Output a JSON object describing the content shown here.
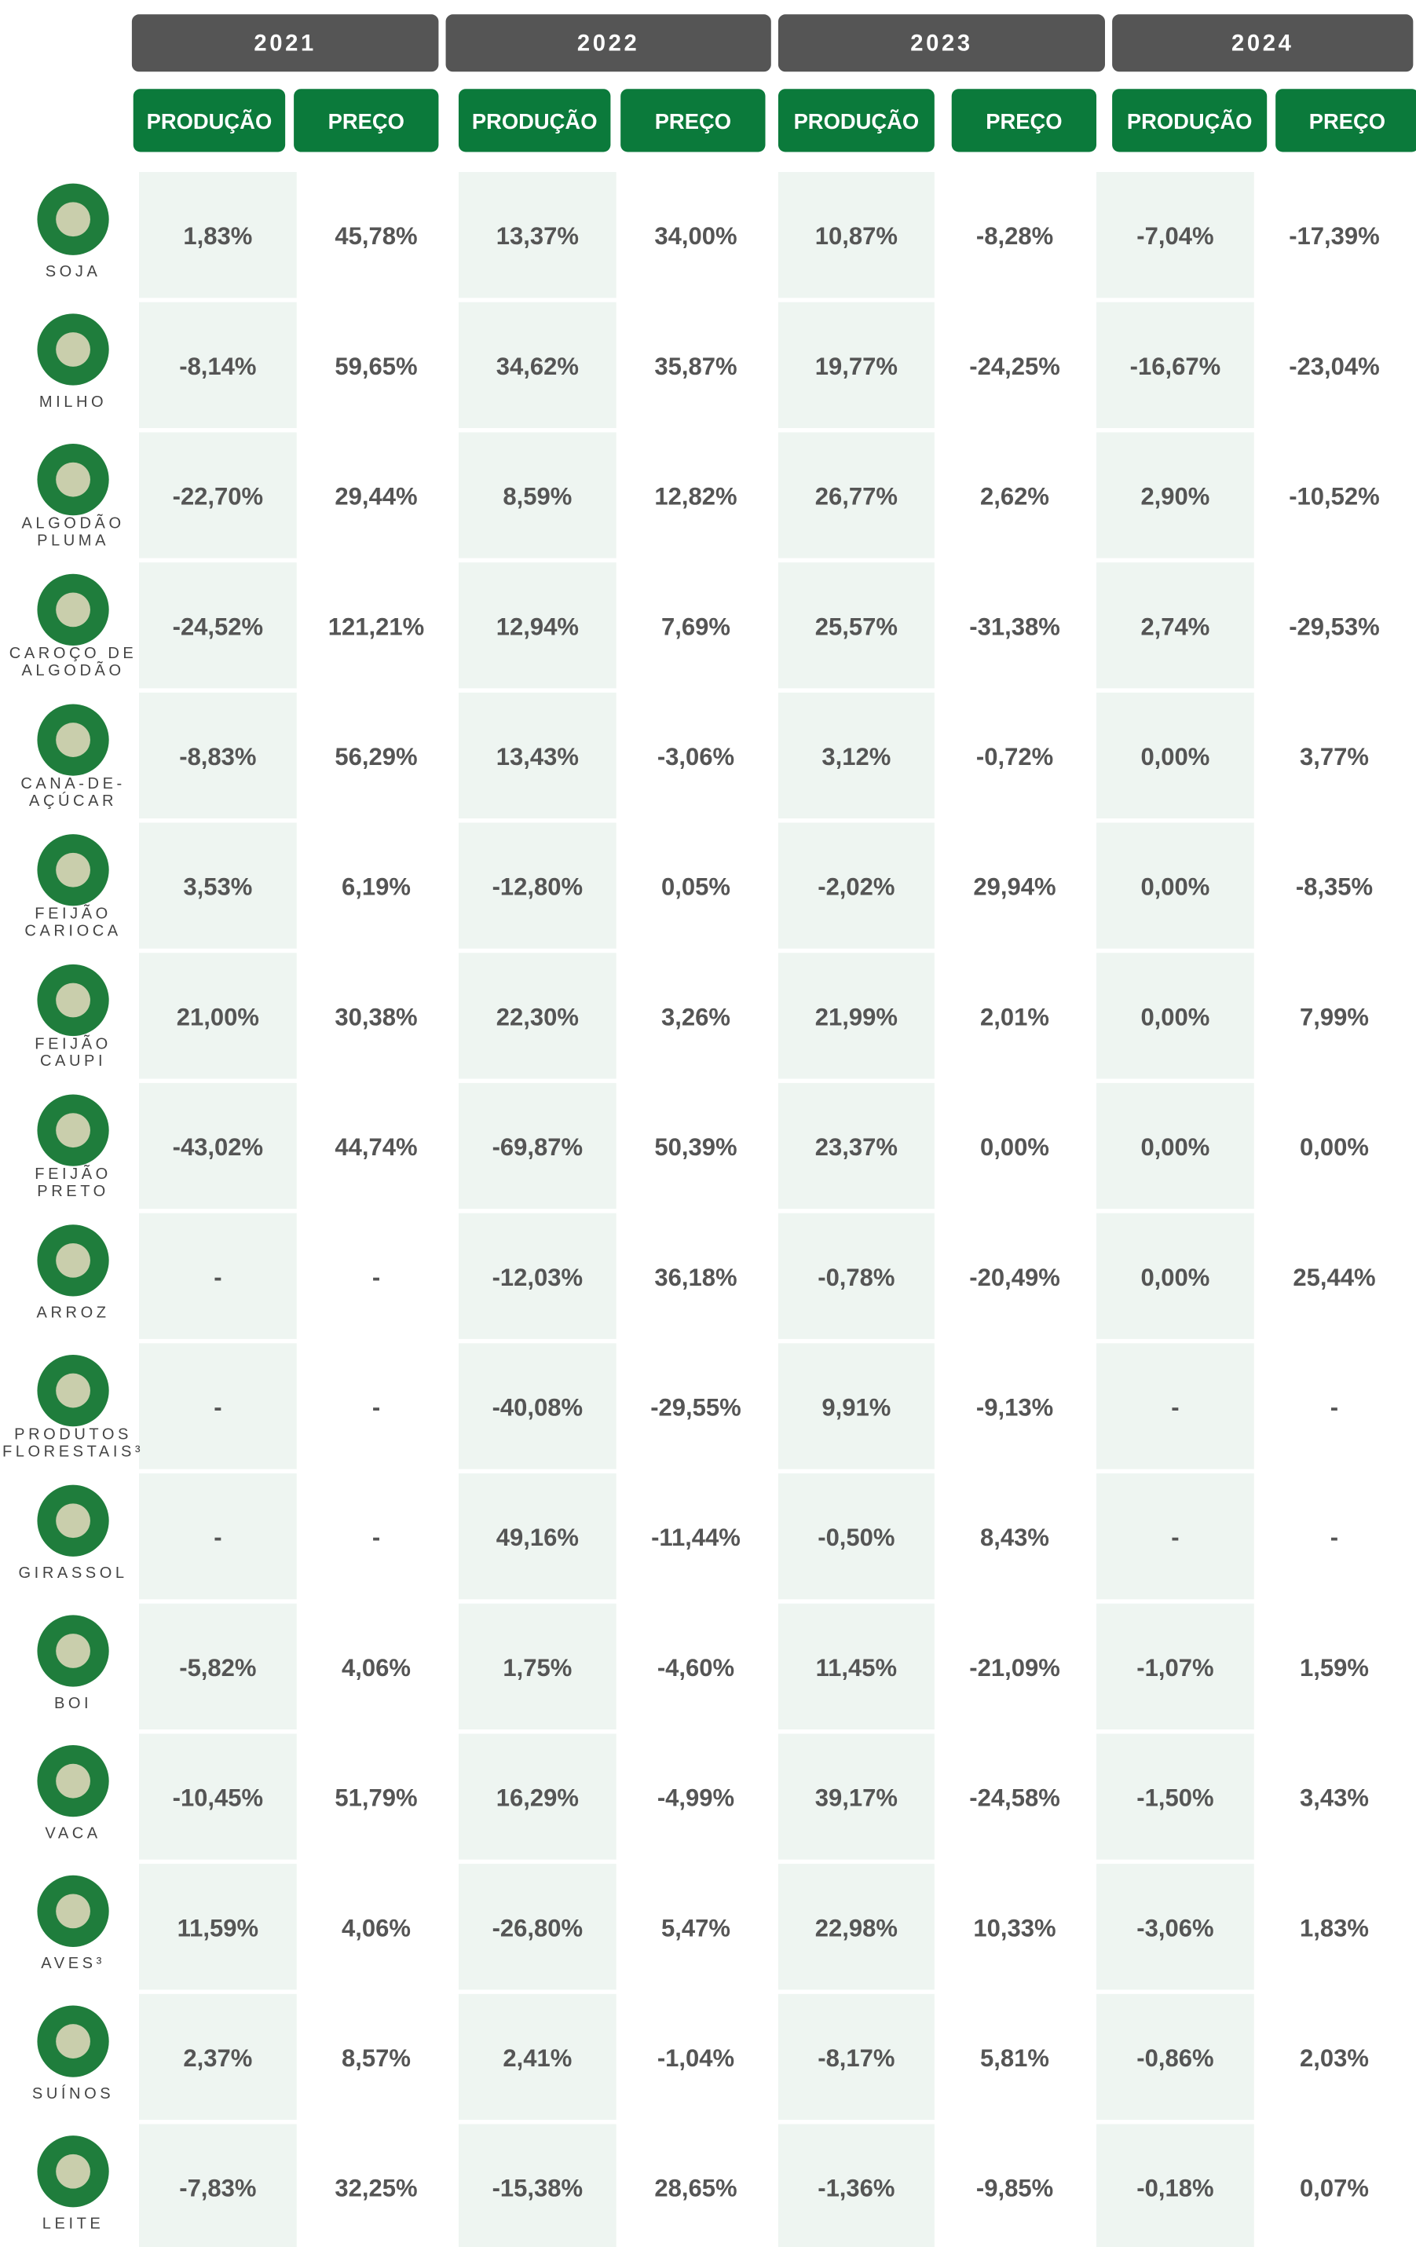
{
  "table": {
    "years": [
      "2021",
      "2022",
      "2023",
      "2024"
    ],
    "subheaders": [
      "PRODUÇÃO",
      "PREÇO",
      "PRODUÇÃO",
      "PREÇO",
      "PRODUÇÃO",
      "PREÇO",
      "PRODUÇÃO",
      "PREÇO"
    ],
    "rows": [
      {
        "label": [
          "SOJA"
        ],
        "values": [
          "1,83%",
          "45,78%",
          "13,37%",
          "34,00%",
          "10,87%",
          "-8,28%",
          "-7,04%",
          "-17,39%"
        ]
      },
      {
        "label": [
          "MILHO"
        ],
        "values": [
          "-8,14%",
          "59,65%",
          "34,62%",
          "35,87%",
          "19,77%",
          "-24,25%",
          "-16,67%",
          "-23,04%"
        ]
      },
      {
        "label": [
          "ALGODÃO",
          "PLUMA"
        ],
        "values": [
          "-22,70%",
          "29,44%",
          "8,59%",
          "12,82%",
          "26,77%",
          "2,62%",
          "2,90%",
          "-10,52%"
        ]
      },
      {
        "label": [
          "CAROÇO DE",
          "ALGODÃO"
        ],
        "values": [
          "-24,52%",
          "121,21%",
          "12,94%",
          "7,69%",
          "25,57%",
          "-31,38%",
          "2,74%",
          "-29,53%"
        ]
      },
      {
        "label": [
          "CANA-DE-",
          "AÇÚCAR"
        ],
        "values": [
          "-8,83%",
          "56,29%",
          "13,43%",
          "-3,06%",
          "3,12%",
          "-0,72%",
          "0,00%",
          "3,77%"
        ]
      },
      {
        "label": [
          "FEIJÃO",
          "CARIOCA"
        ],
        "values": [
          "3,53%",
          "6,19%",
          "-12,80%",
          "0,05%",
          "-2,02%",
          "29,94%",
          "0,00%",
          "-8,35%"
        ]
      },
      {
        "label": [
          "FEIJÃO",
          "CAUPI"
        ],
        "values": [
          "21,00%",
          "30,38%",
          "22,30%",
          "3,26%",
          "21,99%",
          "2,01%",
          "0,00%",
          "7,99%"
        ]
      },
      {
        "label": [
          "FEIJÃO",
          "PRETO"
        ],
        "values": [
          "-43,02%",
          "44,74%",
          "-69,87%",
          "50,39%",
          "23,37%",
          "0,00%",
          "0,00%",
          "0,00%"
        ]
      },
      {
        "label": [
          "ARROZ"
        ],
        "values": [
          "-",
          "-",
          "-12,03%",
          "36,18%",
          "-0,78%",
          "-20,49%",
          "0,00%",
          "25,44%"
        ]
      },
      {
        "label": [
          "PRODUTOS",
          "FLORESTAIS³"
        ],
        "values": [
          "-",
          "-",
          "-40,08%",
          "-29,55%",
          "9,91%",
          "-9,13%",
          "-",
          "-"
        ]
      },
      {
        "label": [
          "GIRASSOL"
        ],
        "values": [
          "-",
          "-",
          "49,16%",
          "-11,44%",
          "-0,50%",
          "8,43%",
          "-",
          "-"
        ]
      },
      {
        "label": [
          "BOI"
        ],
        "values": [
          "-5,82%",
          "4,06%",
          "1,75%",
          "-4,60%",
          "11,45%",
          "-21,09%",
          "-1,07%",
          "1,59%"
        ]
      },
      {
        "label": [
          "VACA"
        ],
        "values": [
          "-10,45%",
          "51,79%",
          "16,29%",
          "-4,99%",
          "39,17%",
          "-24,58%",
          "-1,50%",
          "3,43%"
        ]
      },
      {
        "label": [
          "AVES³"
        ],
        "values": [
          "11,59%",
          "4,06%",
          "-26,80%",
          "5,47%",
          "22,98%",
          "10,33%",
          "-3,06%",
          "1,83%"
        ]
      },
      {
        "label": [
          "SUÍNOS"
        ],
        "values": [
          "2,37%",
          "8,57%",
          "2,41%",
          "-1,04%",
          "-8,17%",
          "5,81%",
          "-0,86%",
          "2,03%"
        ]
      },
      {
        "label": [
          "LEITE"
        ],
        "values": [
          "-7,83%",
          "32,25%",
          "-15,38%",
          "28,65%",
          "-1,36%",
          "-9,85%",
          "-0,18%",
          "0,07%"
        ]
      }
    ]
  }
}
